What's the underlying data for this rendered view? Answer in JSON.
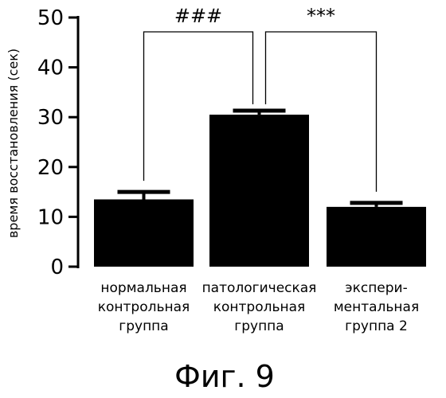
{
  "chart_data": {
    "type": "bar",
    "categories": [
      [
        "нормальная",
        "контрольная",
        "группа"
      ],
      [
        "патологическая",
        "контрольная",
        "группа"
      ],
      [
        "экспери-",
        "ментальная",
        "группа 2"
      ]
    ],
    "values": [
      13.5,
      30.5,
      12
    ],
    "errors": [
      1.5,
      0.8,
      0.8
    ],
    "ylabel": "время восстановления (сек)",
    "ylim": [
      0,
      50
    ],
    "yticks": [
      "0",
      "10",
      "20",
      "30",
      "40",
      "50"
    ],
    "annotations": [
      {
        "label": "###",
        "from": 0,
        "to": 1
      },
      {
        "label": "***",
        "from": 2,
        "to": 1
      }
    ],
    "bar_color": "#000000",
    "grid": false
  },
  "caption": "Фиг. 9"
}
